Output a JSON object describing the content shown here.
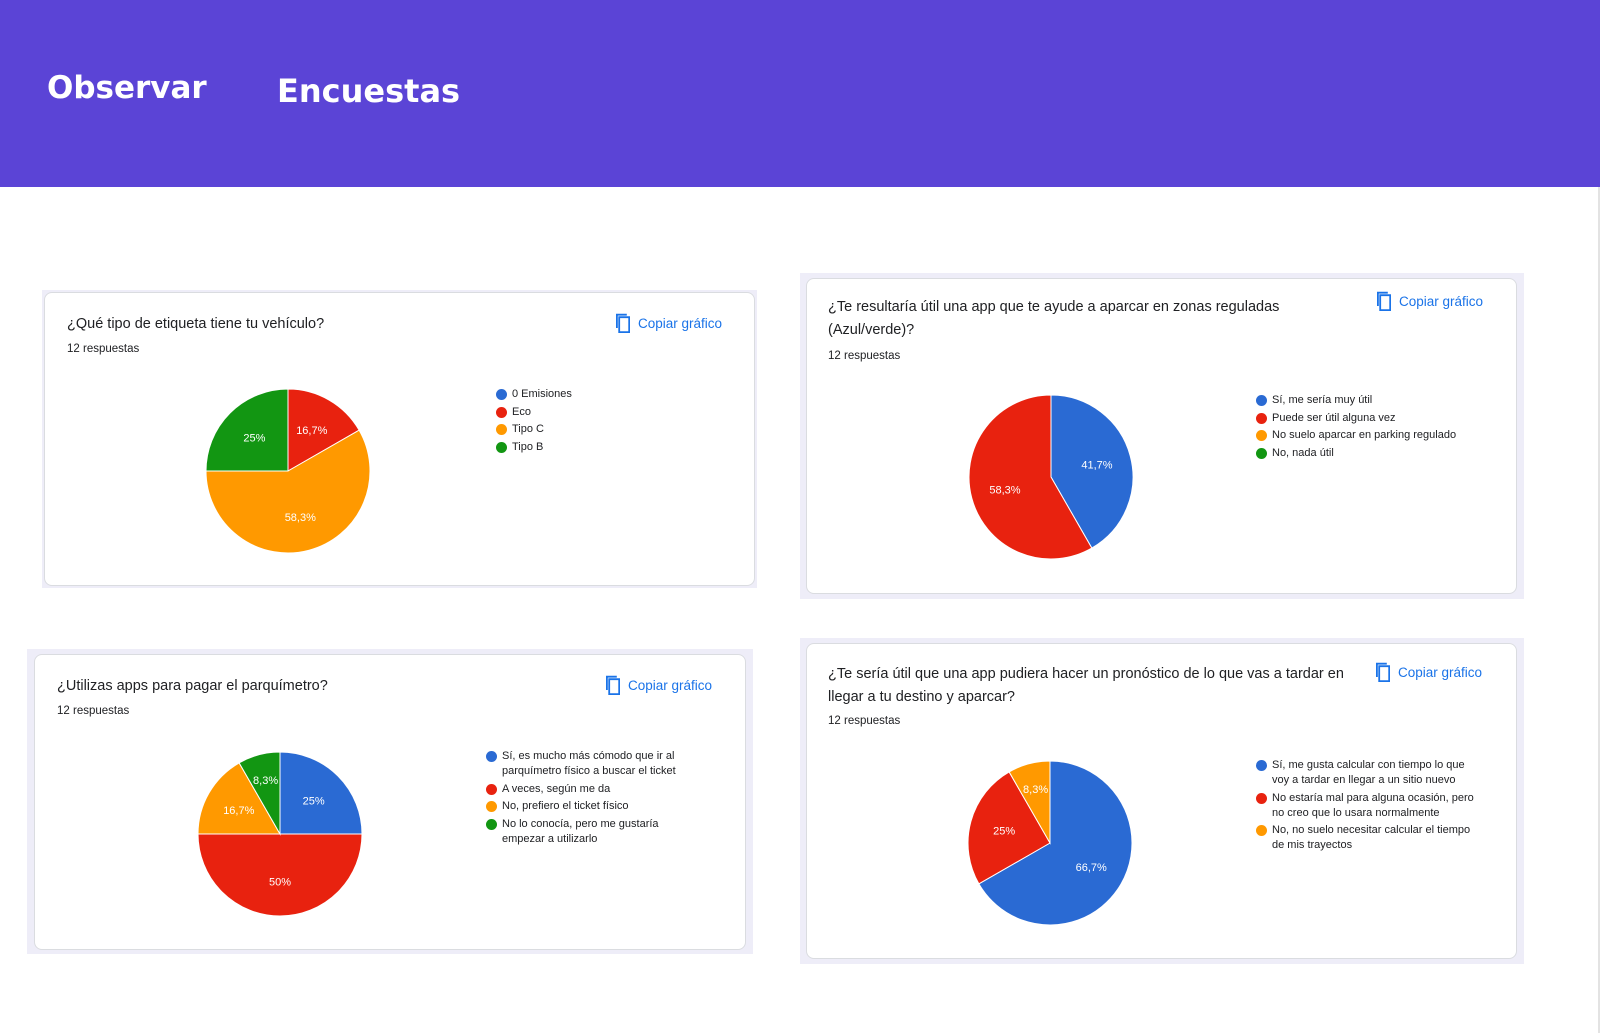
{
  "header": {
    "tabs": [
      "Observar",
      "Encuestas"
    ],
    "background": "#5b44d6"
  },
  "copy_label": "Copiar gráfico",
  "copy_icon": "copy-icon",
  "palette": {
    "blue": "#2a6ad3",
    "red": "#e8220f",
    "orange": "#ff9900",
    "green": "#129612"
  },
  "cards": [
    {
      "question": "¿Qué tipo de etiqueta tiene tu vehículo?",
      "responses": "12 respuestas"
    },
    {
      "question": "¿Te resultaría útil una app que te ayude a aparcar en zonas reguladas (Azul/verde)?",
      "responses": "12 respuestas"
    },
    {
      "question": "¿Utilizas apps para pagar el parquímetro?",
      "responses": "12 respuestas"
    },
    {
      "question": "¿Te sería útil que una app pudiera hacer un pronóstico de lo que vas a tardar en llegar a tu destino y aparcar?",
      "responses": "12 respuestas"
    }
  ],
  "chart_data": [
    {
      "type": "pie",
      "title": "¿Qué tipo de etiqueta tiene tu vehículo?",
      "legend_position": "right",
      "categories": [
        "0 Emisiones",
        "Eco",
        "Tipo C",
        "Tipo B"
      ],
      "values": [
        0,
        16.7,
        58.3,
        25
      ],
      "labels": [
        "",
        "16,7%",
        "58,3%",
        "25%"
      ],
      "colors": [
        "#2a6ad3",
        "#e8220f",
        "#ff9900",
        "#129612"
      ]
    },
    {
      "type": "pie",
      "title": "¿Te resultaría útil una app que te ayude a aparcar en zonas reguladas (Azul/verde)?",
      "legend_position": "right",
      "categories": [
        "Sí, me sería muy útil",
        "Puede ser útil alguna vez",
        "No suelo aparcar en parking regulado",
        "No, nada útil"
      ],
      "values": [
        41.7,
        58.3,
        0,
        0
      ],
      "labels": [
        "41,7%",
        "58,3%",
        "",
        ""
      ],
      "colors": [
        "#2a6ad3",
        "#e8220f",
        "#ff9900",
        "#129612"
      ]
    },
    {
      "type": "pie",
      "title": "¿Utilizas apps para pagar el parquímetro?",
      "legend_position": "right",
      "categories": [
        "Sí, es mucho más cómodo que ir al parquímetro físico a buscar el ticket",
        "A veces, según me da",
        "No, prefiero el ticket físico",
        "No lo conocía, pero me gustaría empezar a utilizarlo"
      ],
      "values": [
        25,
        50,
        16.7,
        8.3
      ],
      "labels": [
        "25%",
        "50%",
        "16,7%",
        "8,3%"
      ],
      "colors": [
        "#2a6ad3",
        "#e8220f",
        "#ff9900",
        "#129612"
      ]
    },
    {
      "type": "pie",
      "title": "¿Te sería útil que una app pudiera hacer un pronóstico de lo que vas a tardar en llegar a tu destino y aparcar?",
      "legend_position": "right",
      "categories": [
        "Sí, me gusta calcular con tiempo lo que voy a tardar en llegar a un sitio nuevo",
        "No estaría mal para alguna ocasión, pero no creo que lo usara normalmente",
        "No, no suelo necesitar calcular el tiempo de mis trayectos"
      ],
      "values": [
        66.7,
        25,
        8.3
      ],
      "labels": [
        "66,7%",
        "25%",
        "8,3%"
      ],
      "colors": [
        "#2a6ad3",
        "#e8220f",
        "#ff9900"
      ]
    }
  ]
}
